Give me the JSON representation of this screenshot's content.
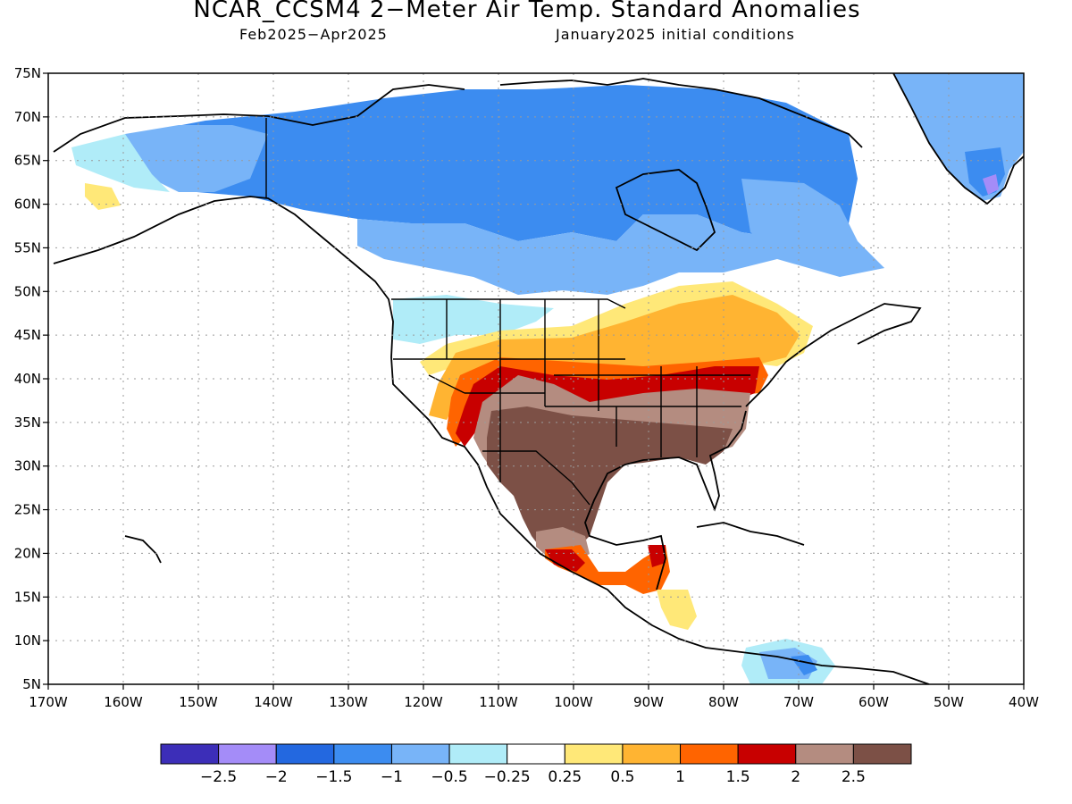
{
  "title": "NCAR_CCSM4 2−Meter Air Temp. Standard Anomalies",
  "subtitle_left": "Feb2025−Apr2025",
  "subtitle_right": "January2025 initial conditions",
  "map": {
    "lon_range": [
      -170,
      -40
    ],
    "lat_range": [
      5,
      75
    ],
    "grid": "dotted",
    "lat_labels": [
      "75N",
      "70N",
      "65N",
      "60N",
      "55N",
      "50N",
      "45N",
      "40N",
      "35N",
      "30N",
      "25N",
      "20N",
      "15N",
      "10N",
      "5N"
    ],
    "lon_labels": [
      "170W",
      "160W",
      "150W",
      "140W",
      "130W",
      "120W",
      "110W",
      "100W",
      "90W",
      "80W",
      "70W",
      "60W",
      "50W",
      "40W"
    ]
  },
  "colorbar": {
    "colors": [
      "#3c2eb8",
      "#a48cf8",
      "#2368e0",
      "#3c8cf0",
      "#78b4f8",
      "#b0ecf8",
      "#ffffff",
      "#ffe878",
      "#ffb432",
      "#ff6400",
      "#c80000",
      "#b48c80",
      "#7c5046"
    ],
    "labels": [
      "−2.5",
      "−2",
      "−1.5",
      "−1",
      "−0.5",
      "−0.25",
      "0.25",
      "0.5",
      "1",
      "1.5",
      "2",
      "2.5"
    ]
  },
  "anomaly_regions": [
    {
      "name": "northern-canada-alaska",
      "level": "-1.5",
      "color": "#3c8cf0"
    },
    {
      "name": "southern-canada-band",
      "level": "-1",
      "color": "#78b4f8"
    },
    {
      "name": "pacific-northwest",
      "level": "-0.25",
      "color": "#b0ecf8"
    },
    {
      "name": "greenland",
      "level": "-1",
      "color": "#78b4f8"
    },
    {
      "name": "great-lakes-northeast",
      "level": "0.5",
      "color": "#ffb432"
    },
    {
      "name": "central-us-band",
      "level": "1.5",
      "color": "#ff6400"
    },
    {
      "name": "mid-atlantic",
      "level": "2",
      "color": "#c80000"
    },
    {
      "name": "southern-us-mexico",
      "level": "2.5",
      "color": "#7c5046"
    },
    {
      "name": "central-america",
      "level": "1.5",
      "color": "#ff6400"
    },
    {
      "name": "northern-south-america",
      "level": "-1",
      "color": "#78b4f8"
    }
  ]
}
